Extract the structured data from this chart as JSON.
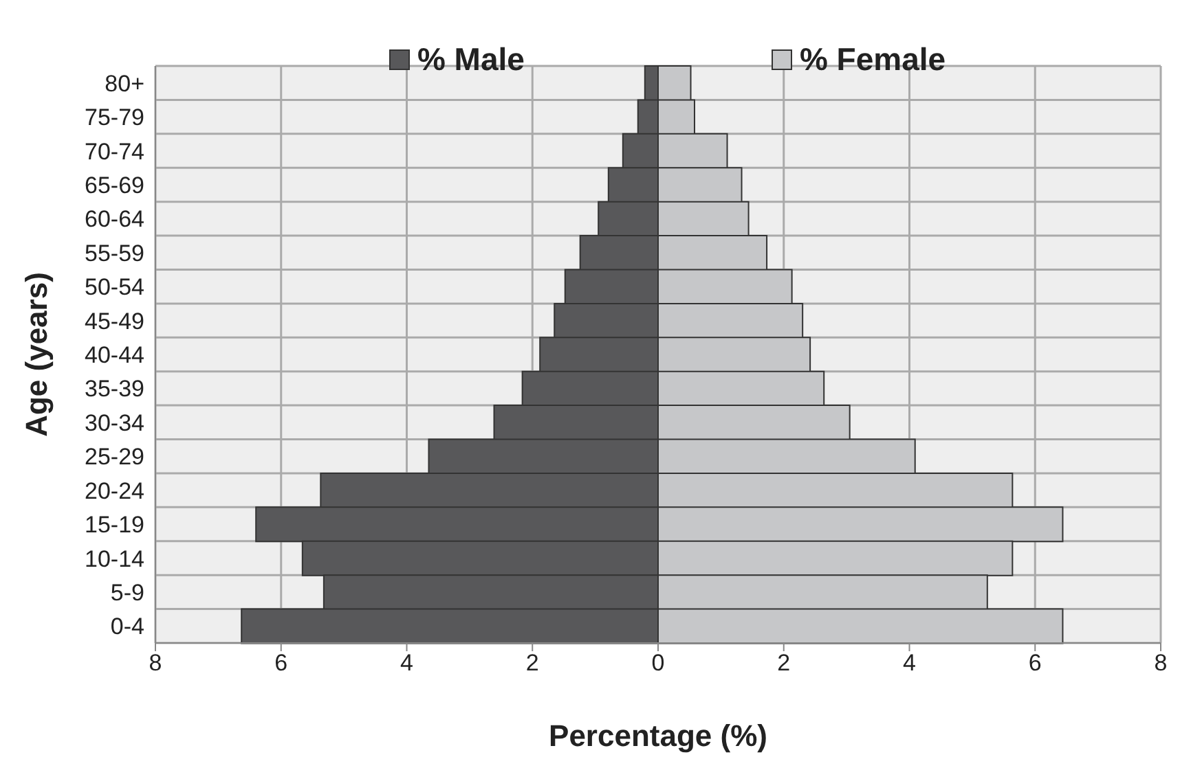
{
  "chart_data": {
    "type": "bar",
    "orientation": "horizontal",
    "stacked": true,
    "xlabel": "Percentage (%)",
    "ylabel": "Age (years)",
    "categories": [
      "80+",
      "75-79",
      "70-74",
      "65-69",
      "60-64",
      "55-59",
      "50-54",
      "45-49",
      "40-44",
      "35-39",
      "30-34",
      "25-29",
      "20-24",
      "15-19",
      "10-14",
      "5-9",
      "0-4"
    ],
    "series": [
      {
        "name": "% Male",
        "color": "#58585a",
        "values": [
          -0.21,
          -0.32,
          -0.56,
          -0.79,
          -0.95,
          -1.24,
          -1.48,
          -1.65,
          -1.88,
          -2.16,
          -2.61,
          -3.65,
          -5.37,
          -6.4,
          -5.66,
          -5.32,
          -6.63
        ]
      },
      {
        "name": "% Female",
        "color": "#c6c7c9",
        "values": [
          0.52,
          0.58,
          1.1,
          1.33,
          1.44,
          1.73,
          2.13,
          2.3,
          2.42,
          2.64,
          3.05,
          4.09,
          5.64,
          6.44,
          5.64,
          5.24,
          6.44
        ]
      }
    ],
    "xlim": [
      -8,
      8
    ],
    "xticks": [
      {
        "value": -8,
        "label": "8"
      },
      {
        "value": -6,
        "label": "6"
      },
      {
        "value": -4,
        "label": "4"
      },
      {
        "value": -2,
        "label": "2"
      },
      0,
      2,
      4,
      6,
      8
    ],
    "grid": true,
    "legend": "top"
  }
}
